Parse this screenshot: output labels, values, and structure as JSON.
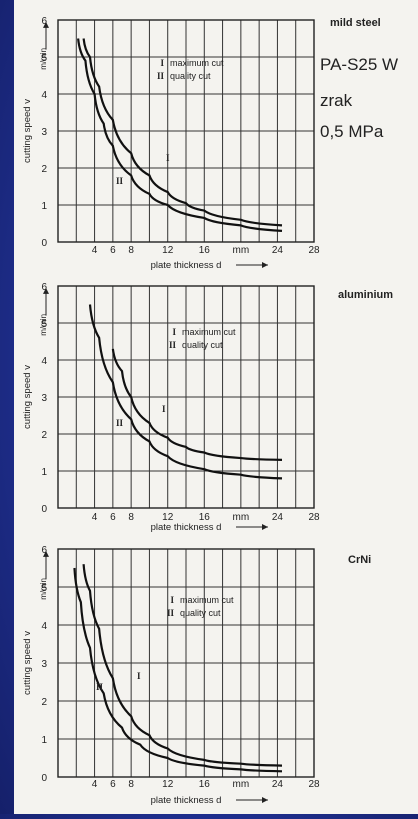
{
  "note": {
    "line1": "PA-S25 W",
    "line2": "zrak",
    "line3": "0,5 MPa"
  },
  "chart_data": [
    {
      "type": "line",
      "title": "mild steel",
      "xlabel": "plate thickness d",
      "ylabel": "cutting speed v",
      "y_unit": "m/min",
      "xlim": [
        0,
        28
      ],
      "ylim": [
        0,
        6
      ],
      "x_ticks": [
        "4",
        "6",
        "8",
        "12",
        "16",
        "mm",
        "24",
        "28"
      ],
      "y_ticks": [
        "0",
        "1",
        "2",
        "3",
        "4",
        "5",
        "6"
      ],
      "legend": [
        {
          "mark": "I",
          "text": "maximum cut"
        },
        {
          "mark": "II",
          "text": "quality cut"
        }
      ],
      "series": [
        {
          "name": "I",
          "x": [
            2.8,
            3.5,
            4.5,
            6,
            8,
            10,
            12,
            14,
            16,
            20,
            24.5
          ],
          "y": [
            5.5,
            5.0,
            4.2,
            3.3,
            2.4,
            1.8,
            1.35,
            1.05,
            0.85,
            0.6,
            0.45
          ]
        },
        {
          "name": "II",
          "x": [
            2.2,
            3,
            4,
            5,
            6,
            8,
            10,
            12,
            16,
            20,
            24.5
          ],
          "y": [
            5.5,
            4.9,
            4.0,
            3.2,
            2.6,
            1.8,
            1.3,
            1.0,
            0.65,
            0.45,
            0.3
          ]
        }
      ]
    },
    {
      "type": "line",
      "title": "aluminium",
      "xlabel": "plate thickness d",
      "ylabel": "cutting speed v",
      "y_unit": "m/min",
      "xlim": [
        0,
        28
      ],
      "ylim": [
        0,
        6
      ],
      "x_ticks": [
        "4",
        "6",
        "8",
        "12",
        "16",
        "mm",
        "24",
        "28"
      ],
      "y_ticks": [
        "0",
        "1",
        "2",
        "3",
        "4",
        "5",
        "6"
      ],
      "legend": [
        {
          "mark": "I",
          "text": "maximum cut"
        },
        {
          "mark": "II",
          "text": "quality cut"
        }
      ],
      "series": [
        {
          "name": "I",
          "x": [
            6,
            7,
            8,
            10,
            12,
            14,
            16,
            20,
            24.5
          ],
          "y": [
            4.3,
            3.7,
            3.0,
            2.3,
            1.9,
            1.65,
            1.5,
            1.35,
            1.3
          ]
        },
        {
          "name": "II",
          "x": [
            3.5,
            4.5,
            6,
            8,
            10,
            12,
            16,
            20,
            24.5
          ],
          "y": [
            5.5,
            4.6,
            3.4,
            2.4,
            1.8,
            1.4,
            1.05,
            0.9,
            0.8
          ]
        }
      ]
    },
    {
      "type": "line",
      "title": "CrNi",
      "xlabel": "plate thickness d",
      "ylabel": "cutting speed v",
      "y_unit": "m/min",
      "xlim": [
        0,
        28
      ],
      "ylim": [
        0,
        6
      ],
      "x_ticks": [
        "4",
        "6",
        "8",
        "12",
        "16",
        "mm",
        "24",
        "28"
      ],
      "y_ticks": [
        "0",
        "1",
        "2",
        "3",
        "4",
        "5",
        "6"
      ],
      "legend": [
        {
          "mark": "I",
          "text": "maximum cut"
        },
        {
          "mark": "II",
          "text": "quality cut"
        }
      ],
      "series": [
        {
          "name": "I",
          "x": [
            2.8,
            3.5,
            4.5,
            6,
            8,
            10,
            12,
            16,
            20,
            24.5
          ],
          "y": [
            5.6,
            4.9,
            3.9,
            2.6,
            1.6,
            1.1,
            0.75,
            0.45,
            0.35,
            0.3
          ]
        },
        {
          "name": "II",
          "x": [
            1.8,
            2.5,
            3.5,
            5,
            7,
            9,
            12,
            16,
            20,
            24.5
          ],
          "y": [
            5.5,
            4.6,
            3.4,
            2.2,
            1.3,
            0.85,
            0.5,
            0.3,
            0.2,
            0.15
          ]
        }
      ]
    }
  ]
}
